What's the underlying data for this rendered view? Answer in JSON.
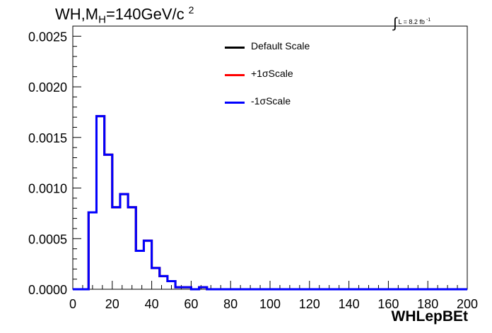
{
  "header": {
    "title_main": "WH,M",
    "title_sub": "H",
    "title_rest": "=140GeV/c",
    "title_sup": "2",
    "lumi_text": "L = 8.2 fb",
    "lumi_sup": "-1"
  },
  "chart_data": {
    "type": "line",
    "title": "WH,MH=140GeV/c2",
    "xlabel": "WHLepBEt",
    "ylabel": "",
    "xlim": [
      0,
      200
    ],
    "ylim": [
      0,
      0.0026
    ],
    "xticks": [
      "0",
      "20",
      "40",
      "60",
      "80",
      "100",
      "120",
      "140",
      "160",
      "180",
      "200"
    ],
    "yticks": [
      "0.0000",
      "0.0005",
      "0.0010",
      "0.0015",
      "0.0020",
      "0.0025"
    ],
    "grid": false,
    "legend_position": "top-center",
    "bin_width": 4,
    "bin_lows": [
      0,
      4,
      8,
      12,
      16,
      20,
      24,
      28,
      32,
      36,
      40,
      44,
      48,
      52,
      56,
      60,
      64,
      68,
      72,
      76,
      80,
      84,
      88,
      92,
      96,
      100,
      104,
      108,
      112,
      116,
      120,
      124,
      128,
      132,
      136,
      140,
      144,
      148,
      152,
      156,
      160,
      164,
      168,
      172,
      176,
      180,
      184,
      188,
      192,
      196
    ],
    "series": [
      {
        "name": "Default Scale",
        "color": "#000000",
        "values": [
          0,
          0,
          0.00076,
          0.00171,
          0.00133,
          0.00081,
          0.00094,
          0.00081,
          0.00038,
          0.00048,
          0.00021,
          0.00013,
          8e-05,
          2e-05,
          2e-05,
          0,
          2e-05,
          0,
          0,
          0,
          0,
          0,
          0,
          0,
          0,
          0,
          0,
          0,
          0,
          0,
          0,
          0,
          0,
          0,
          0,
          0,
          0,
          0,
          0,
          0,
          0,
          0,
          0,
          0,
          0,
          0,
          0,
          0,
          0,
          0
        ]
      },
      {
        "name": "+1σScale",
        "color": "#ff0000",
        "values": [
          0,
          0,
          0.00076,
          0.00171,
          0.00133,
          0.00081,
          0.00094,
          0.00081,
          0.00038,
          0.00048,
          0.00021,
          0.00013,
          8e-05,
          2e-05,
          2e-05,
          0,
          2e-05,
          0,
          0,
          0,
          0,
          0,
          0,
          0,
          0,
          0,
          0,
          0,
          0,
          0,
          0,
          0,
          0,
          0,
          0,
          0,
          0,
          0,
          0,
          0,
          0,
          0,
          0,
          0,
          0,
          0,
          0,
          0,
          0,
          0
        ]
      },
      {
        "name": "-1σScale",
        "color": "#0000ff",
        "values": [
          0,
          0,
          0.00076,
          0.00171,
          0.00133,
          0.00081,
          0.00094,
          0.00081,
          0.00038,
          0.00048,
          0.00021,
          0.00013,
          8e-05,
          2e-05,
          2e-05,
          0,
          2e-05,
          0,
          0,
          0,
          0,
          0,
          0,
          0,
          0,
          0,
          0,
          0,
          0,
          0,
          0,
          0,
          0,
          0,
          0,
          0,
          0,
          0,
          0,
          0,
          0,
          0,
          0,
          0,
          0,
          0,
          0,
          0,
          0,
          0
        ]
      }
    ]
  }
}
